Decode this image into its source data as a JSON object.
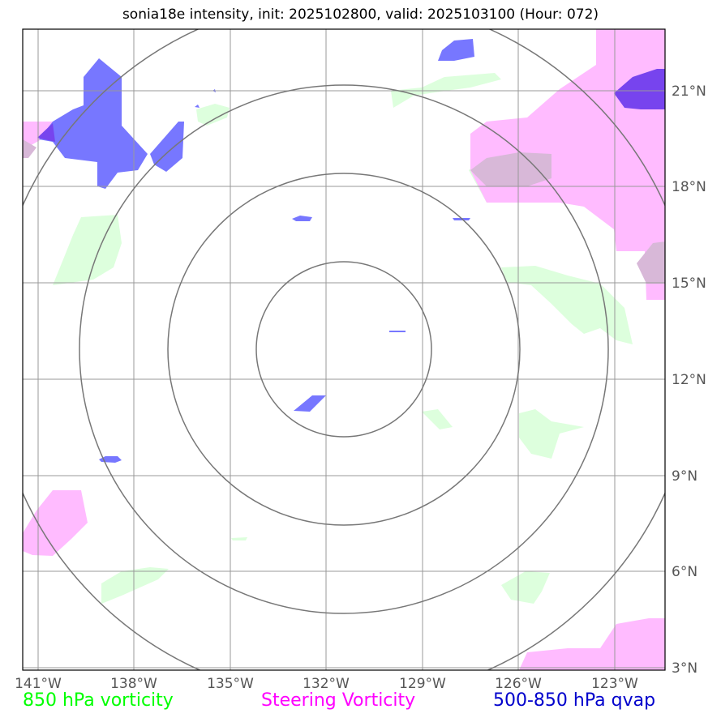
{
  "title": "sonia18e intensity, init: 2025102800, valid: 2025103100 (Hour: 072)",
  "lon_labels": [
    "141°W",
    "138°W",
    "135°W",
    "132°W",
    "129°W",
    "126°W",
    "123°W"
  ],
  "lat_labels": [
    "21°N",
    "18°N",
    "15°N",
    "12°N",
    "9°N",
    "6°N",
    "3°N"
  ],
  "legend": {
    "left": {
      "label": "850 hPa vorticity",
      "color": "#00ff00"
    },
    "middle": {
      "label": "Steering Vorticity",
      "color": "#ff00ff"
    },
    "right": {
      "label": "500-850 hPa qvap",
      "color": "#0000cc"
    }
  },
  "colors": {
    "vorticity_850": "#ddffdd",
    "steering_vorticity": "#ffbbff",
    "qvap": "#7777ff",
    "qvap_dark": "#7744ee",
    "grid": "#999999",
    "rings": "#777777"
  }
}
